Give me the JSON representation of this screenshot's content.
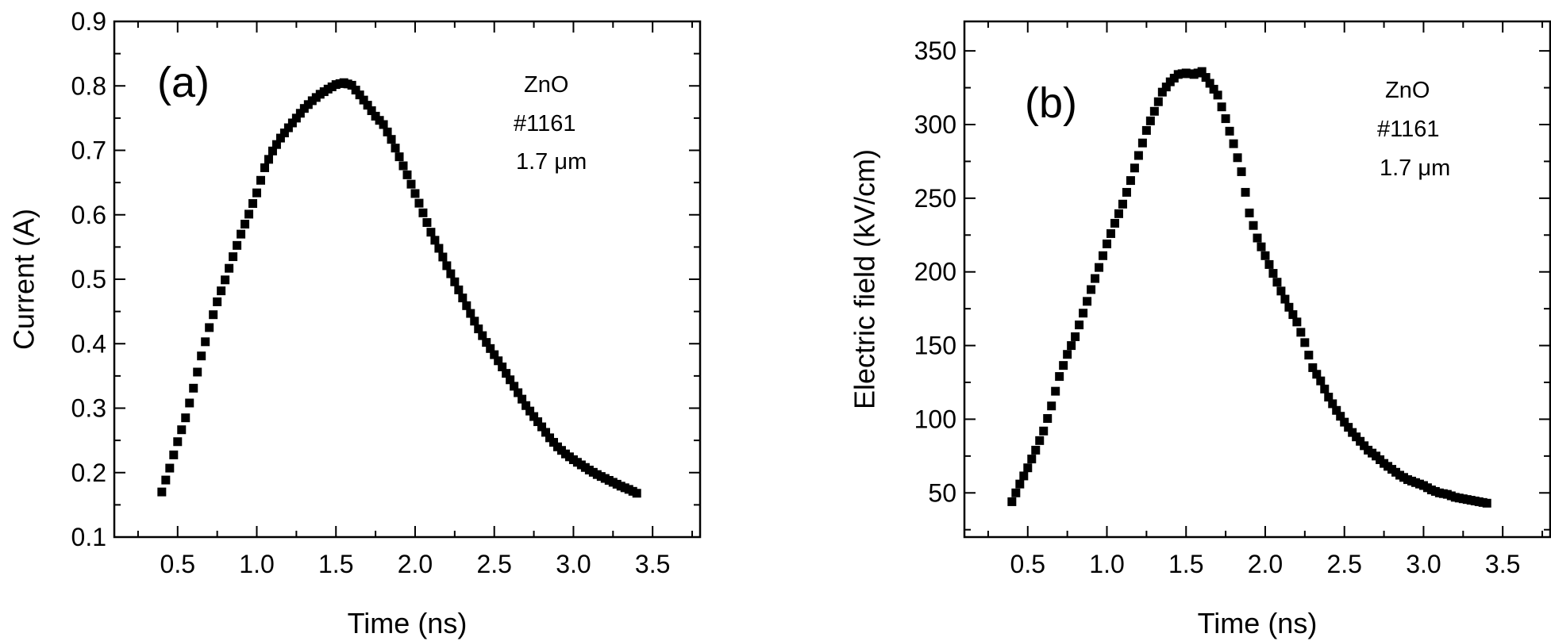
{
  "chart_data": [
    {
      "type": "scatter",
      "panel_label": "(a)",
      "title": "",
      "xlabel": "Time (ns)",
      "ylabel": "Current (A)",
      "xlim": [
        0.1,
        3.8
      ],
      "ylim": [
        0.1,
        0.9
      ],
      "xticks": [
        "0.5",
        "1.0",
        "1.5",
        "2.0",
        "2.5",
        "3.0",
        "3.5"
      ],
      "xtick_values": [
        0.5,
        1.0,
        1.5,
        2.0,
        2.5,
        3.0,
        3.5
      ],
      "yticks": [
        "0.1",
        "0.2",
        "0.3",
        "0.4",
        "0.5",
        "0.6",
        "0.7",
        "0.8",
        "0.9"
      ],
      "ytick_values": [
        0.1,
        0.2,
        0.3,
        0.4,
        0.5,
        0.6,
        0.7,
        0.8,
        0.9
      ],
      "grid": false,
      "marker": "filled-square",
      "annotation": [
        "ZnO",
        "#1161",
        "1.7 μm"
      ],
      "series": [
        {
          "name": "Current",
          "x": [
            0.4,
            0.45,
            0.5,
            0.55,
            0.6,
            0.65,
            0.7,
            0.75,
            0.8,
            0.85,
            0.9,
            0.95,
            1.0,
            1.05,
            1.1,
            1.15,
            1.2,
            1.25,
            1.3,
            1.35,
            1.4,
            1.45,
            1.5,
            1.55,
            1.6,
            1.65,
            1.7,
            1.75,
            1.8,
            1.85,
            1.9,
            1.95,
            2.0,
            2.05,
            2.1,
            2.15,
            2.2,
            2.25,
            2.3,
            2.35,
            2.4,
            2.45,
            2.5,
            2.55,
            2.6,
            2.65,
            2.7,
            2.75,
            2.8,
            2.85,
            2.9,
            2.95,
            3.0,
            3.05,
            3.1,
            3.15,
            3.2,
            3.25,
            3.3,
            3.35,
            3.4
          ],
          "y": [
            0.17,
            0.207,
            0.248,
            0.285,
            0.331,
            0.381,
            0.425,
            0.465,
            0.499,
            0.535,
            0.57,
            0.601,
            0.634,
            0.673,
            0.699,
            0.719,
            0.735,
            0.75,
            0.765,
            0.777,
            0.787,
            0.795,
            0.802,
            0.805,
            0.801,
            0.786,
            0.77,
            0.753,
            0.74,
            0.717,
            0.69,
            0.662,
            0.633,
            0.603,
            0.573,
            0.548,
            0.521,
            0.496,
            0.471,
            0.447,
            0.423,
            0.402,
            0.383,
            0.364,
            0.344,
            0.324,
            0.304,
            0.287,
            0.271,
            0.254,
            0.24,
            0.229,
            0.22,
            0.212,
            0.204,
            0.197,
            0.191,
            0.185,
            0.179,
            0.174,
            0.168
          ]
        }
      ]
    },
    {
      "type": "scatter",
      "panel_label": "(b)",
      "title": "",
      "xlabel": "Time (ns)",
      "ylabel": "Electric field (kV/cm)",
      "xlim": [
        0.1,
        3.8
      ],
      "ylim": [
        20,
        370
      ],
      "xticks": [
        "0.5",
        "1.0",
        "1.5",
        "2.0",
        "2.5",
        "3.0",
        "3.5"
      ],
      "xtick_values": [
        0.5,
        1.0,
        1.5,
        2.0,
        2.5,
        3.0,
        3.5
      ],
      "yticks": [
        "50",
        "100",
        "150",
        "200",
        "250",
        "300",
        "350"
      ],
      "ytick_values": [
        50,
        100,
        150,
        200,
        250,
        300,
        350
      ],
      "grid": false,
      "marker": "filled-square",
      "annotation": [
        "ZnO",
        "#1161",
        "1.7 μm"
      ],
      "series": [
        {
          "name": "Electric field",
          "x": [
            0.4,
            0.45,
            0.5,
            0.55,
            0.6,
            0.65,
            0.7,
            0.75,
            0.8,
            0.85,
            0.9,
            0.95,
            1.0,
            1.05,
            1.1,
            1.15,
            1.2,
            1.25,
            1.3,
            1.35,
            1.4,
            1.45,
            1.5,
            1.55,
            1.6,
            1.65,
            1.7,
            1.75,
            1.8,
            1.85,
            1.9,
            1.95,
            2.0,
            2.05,
            2.1,
            2.15,
            2.2,
            2.25,
            2.3,
            2.35,
            2.4,
            2.45,
            2.5,
            2.55,
            2.6,
            2.65,
            2.7,
            2.75,
            2.8,
            2.85,
            2.9,
            2.95,
            3.0,
            3.05,
            3.1,
            3.15,
            3.2,
            3.25,
            3.3,
            3.35,
            3.4
          ],
          "y": [
            44,
            56,
            67,
            79,
            92,
            109,
            129,
            144,
            156,
            172,
            188,
            203,
            219,
            233,
            246,
            262,
            279,
            296,
            309,
            322,
            329,
            334,
            335,
            334,
            336,
            328,
            320,
            304,
            287,
            268,
            240,
            223,
            211,
            199,
            187,
            176,
            166,
            152,
            135,
            126,
            115,
            106,
            98,
            91,
            85,
            79,
            75,
            70,
            66,
            62,
            59,
            57,
            55,
            52,
            50,
            49,
            47,
            46,
            45,
            44,
            43
          ]
        }
      ]
    }
  ]
}
